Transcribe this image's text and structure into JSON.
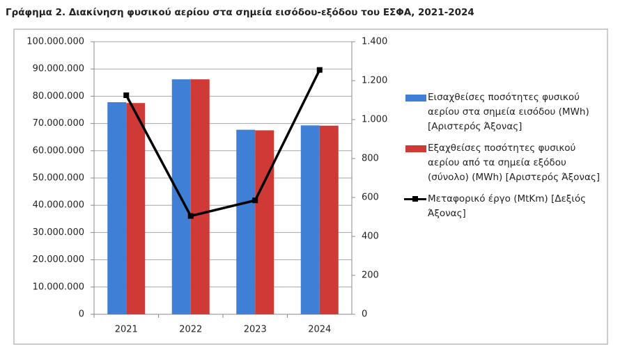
{
  "chart_data": {
    "type": "bar",
    "title": "Γράφημα 2. Διακίνηση φυσικού αερίου στα σημεία εισόδου-εξόδου του ΕΣΦΑ, 2021-2024",
    "categories": [
      "2021",
      "2022",
      "2023",
      "2024"
    ],
    "series": [
      {
        "name": "Εισαχθείσες ποσότητες φυσικού αερίου στα σημεία εισόδου (MWh) [Αριστερός Άξονας]",
        "color": "#3f7fd6",
        "type": "bar",
        "values": [
          77800000,
          86200000,
          67700000,
          69300000
        ]
      },
      {
        "name": "Εξαχθείσες ποσότητες φυσικού αερίου από τα σημεία εξόδου (σύνολο) (MWh)  [Αριστερός Άξονας]",
        "color": "#d03a36",
        "type": "bar",
        "values": [
          77500000,
          86200000,
          67500000,
          69200000
        ]
      },
      {
        "name": "Μεταφορικό έργο (MtKm) [Δεξιός Άξονας]",
        "color": "#000000",
        "type": "line",
        "axis": "y2",
        "values": [
          1125,
          505,
          585,
          1255
        ]
      }
    ],
    "ylim": [
      0,
      100000000
    ],
    "yticks": [
      0,
      {
        "value": 10000000,
        "label": "10.000.000"
      },
      {
        "value": 20000000,
        "label": "20.000.000"
      },
      {
        "value": 30000000,
        "label": "30.000.000"
      },
      {
        "value": 40000000,
        "label": "40.000.000"
      },
      {
        "value": 50000000,
        "label": "50.000.000"
      },
      {
        "value": 60000000,
        "label": "60.000.000"
      },
      {
        "value": 70000000,
        "label": "70.000.000"
      },
      {
        "value": 80000000,
        "label": "80.000.000"
      },
      {
        "value": 90000000,
        "label": "90.000.000"
      },
      {
        "value": 100000000,
        "label": "100.000.000"
      }
    ],
    "y2lim": [
      0,
      1400
    ],
    "y2ticks": [
      0,
      200,
      400,
      600,
      800,
      {
        "value": 1000,
        "label": "1.000"
      },
      {
        "value": 1200,
        "label": "1.200"
      },
      {
        "value": 1400,
        "label": "1.400"
      }
    ],
    "grid": true,
    "legend": "right"
  }
}
